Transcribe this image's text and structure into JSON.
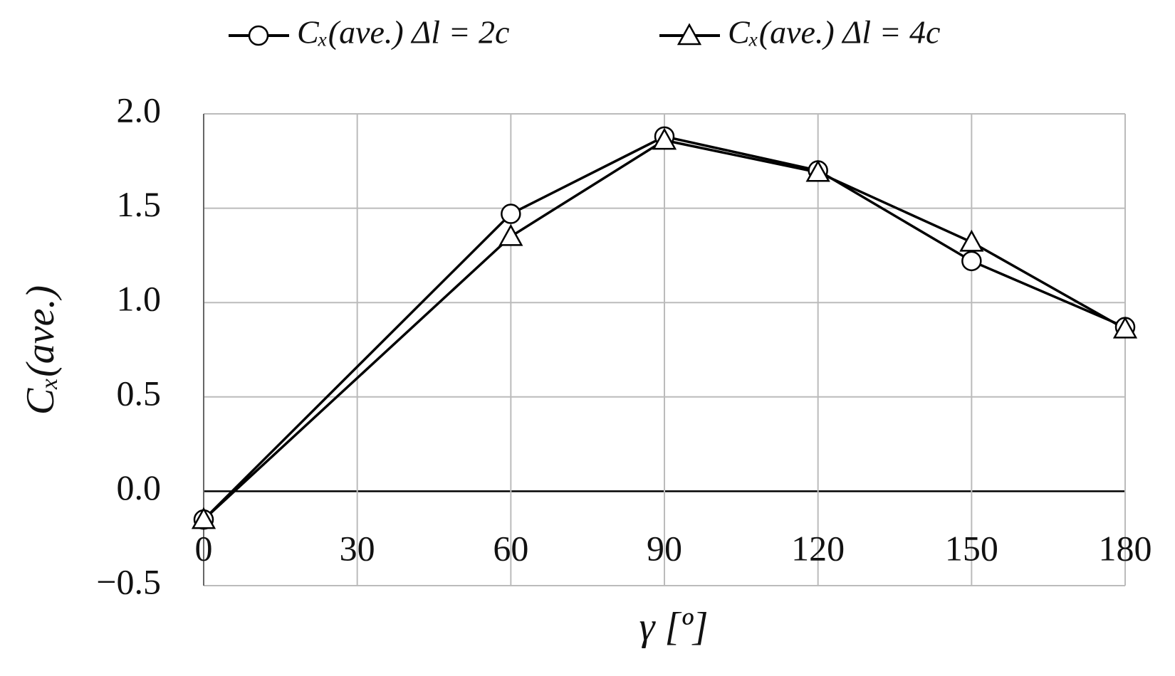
{
  "chart_data": {
    "type": "line",
    "x": [
      0,
      60,
      90,
      120,
      150,
      180
    ],
    "series": [
      {
        "name": "Cₓ(ave.) Δl = 2c",
        "color": "#000000",
        "marker": "circle",
        "values": [
          -0.15,
          1.47,
          1.88,
          1.7,
          1.22,
          0.87
        ]
      },
      {
        "name": "Cₓ(ave.) Δl = 4c",
        "color": "#000000",
        "marker": "triangle",
        "values": [
          -0.15,
          1.35,
          1.86,
          1.69,
          1.32,
          0.86
        ]
      }
    ],
    "xlabel": "γ [º]",
    "ylabel": "Cₓ(ave.)",
    "xlim": [
      0,
      180
    ],
    "xticks": [
      0,
      30,
      60,
      90,
      120,
      150,
      180
    ],
    "ylim": [
      -0.5,
      2.0
    ],
    "yticks": [
      {
        "value": -0.5,
        "label": "−0.5"
      },
      {
        "value": 0,
        "label": "0.0"
      },
      0.5,
      {
        "value": 1,
        "label": "1.0"
      },
      1.5,
      {
        "value": 2,
        "label": "2.0"
      }
    ],
    "grid": true,
    "legend": "top"
  }
}
